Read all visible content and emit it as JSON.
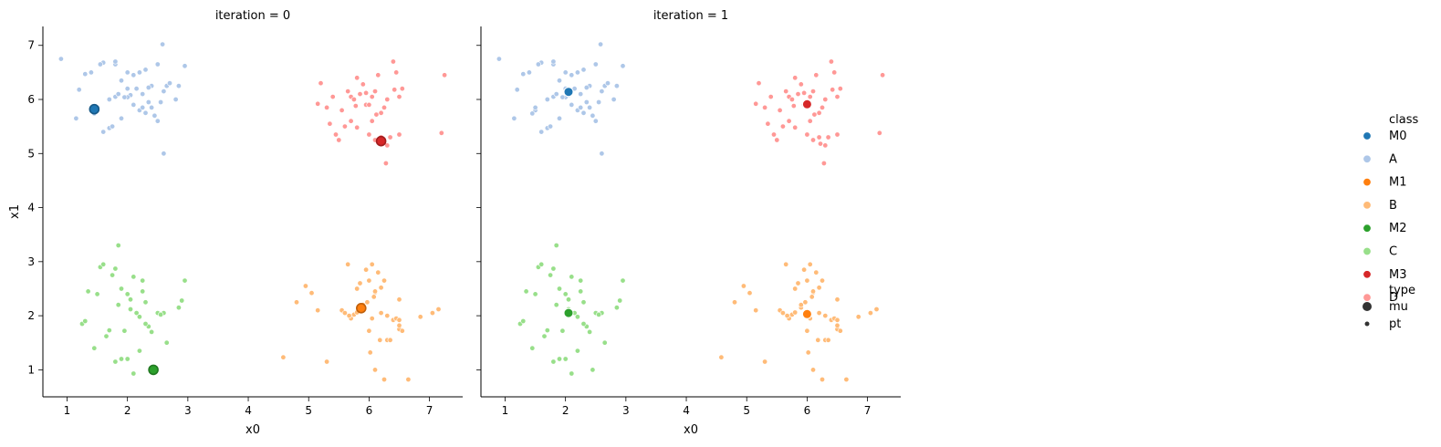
{
  "chart_data": {
    "type": "scatter",
    "xlabel": "x0",
    "ylabel": "x1",
    "xlim": [
      0.6,
      7.55
    ],
    "ylim": [
      0.5,
      7.35
    ],
    "xticks": [
      "1",
      "2",
      "3",
      "4",
      "5",
      "6",
      "7"
    ],
    "yticks": [
      "1",
      "2",
      "3",
      "4",
      "5",
      "6",
      "7"
    ],
    "legend": {
      "placement": "right",
      "class_title": "class",
      "class_entries": [
        {
          "label": "M0",
          "color": "#1f77b4"
        },
        {
          "label": "A",
          "color": "#aec7e8"
        },
        {
          "label": "M1",
          "color": "#ff7f0e"
        },
        {
          "label": "B",
          "color": "#ffbb78"
        },
        {
          "label": "M2",
          "color": "#2ca02c"
        },
        {
          "label": "C",
          "color": "#98df8a"
        },
        {
          "label": "M3",
          "color": "#d62728"
        },
        {
          "label": "D",
          "color": "#ff9896"
        }
      ],
      "type_title": "type",
      "type_entries": [
        {
          "label": "mu",
          "size": "large"
        },
        {
          "label": "pt",
          "size": "small"
        }
      ]
    },
    "points": {
      "A": {
        "color": "#aec7e8",
        "x": [
          0.9,
          1.2,
          1.3,
          1.4,
          1.5,
          1.5,
          1.6,
          1.6,
          1.7,
          1.7,
          1.8,
          1.8,
          1.8,
          1.85,
          1.9,
          1.9,
          2.0,
          2.0,
          2.05,
          2.1,
          2.1,
          2.15,
          2.2,
          2.2,
          2.25,
          2.3,
          2.3,
          2.35,
          2.4,
          2.4,
          2.45,
          2.5,
          2.5,
          2.55,
          2.6,
          2.6,
          2.65,
          2.7,
          2.8,
          2.85,
          2.95,
          1.15,
          1.45,
          1.55,
          1.75,
          2.0,
          2.25,
          1.95,
          2.35,
          2.58
        ],
        "y": [
          6.75,
          6.18,
          6.47,
          6.5,
          5.8,
          5.85,
          5.4,
          6.68,
          5.47,
          6.0,
          6.05,
          6.65,
          6.7,
          6.1,
          5.65,
          6.35,
          6.5,
          6.2,
          6.08,
          5.9,
          6.45,
          6.2,
          5.8,
          6.5,
          6.1,
          5.75,
          6.55,
          5.95,
          5.85,
          6.25,
          5.7,
          6.65,
          5.6,
          5.95,
          6.15,
          5.0,
          6.25,
          6.3,
          6.0,
          6.25,
          6.62,
          5.65,
          5.74,
          6.65,
          5.5,
          6.04,
          5.85,
          6.04,
          6.22,
          7.02
        ]
      },
      "B": {
        "color": "#ffbb78",
        "x": [
          4.58,
          4.8,
          4.95,
          5.05,
          5.15,
          5.3,
          5.55,
          5.6,
          5.65,
          5.7,
          5.75,
          5.8,
          5.85,
          5.9,
          5.95,
          6.0,
          6.0,
          6.05,
          6.05,
          6.1,
          6.1,
          6.15,
          6.2,
          6.2,
          6.25,
          6.25,
          6.3,
          6.35,
          6.4,
          6.45,
          6.5,
          6.5,
          6.5,
          6.55,
          6.65,
          6.85,
          7.05,
          7.15,
          5.8,
          6.02,
          6.18,
          6.5,
          5.9,
          6.1,
          5.67,
          6.08,
          6.3,
          5.97
        ],
        "y": [
          1.23,
          2.25,
          2.55,
          2.42,
          2.1,
          1.15,
          2.1,
          2.05,
          2.95,
          1.95,
          2.02,
          2.5,
          2.6,
          2.15,
          2.85,
          2.65,
          1.72,
          1.95,
          2.95,
          2.43,
          1.0,
          2.8,
          2.52,
          2.05,
          2.65,
          0.82,
          1.55,
          1.55,
          1.92,
          1.95,
          2.3,
          1.92,
          1.75,
          1.72,
          0.82,
          1.98,
          2.05,
          2.12,
          2.06,
          1.32,
          1.55,
          1.82,
          2.2,
          2.45,
          2.0,
          2.35,
          2.0,
          2.25
        ]
      },
      "C": {
        "color": "#98df8a",
        "x": [
          1.25,
          1.3,
          1.35,
          1.45,
          1.5,
          1.55,
          1.6,
          1.7,
          1.75,
          1.8,
          1.8,
          1.85,
          1.9,
          1.9,
          1.95,
          2.0,
          2.0,
          2.05,
          2.1,
          2.1,
          2.15,
          2.2,
          2.2,
          2.25,
          2.3,
          2.35,
          2.4,
          2.45,
          2.5,
          2.6,
          2.65,
          2.85,
          2.9,
          2.95,
          1.85,
          2.05,
          2.25,
          1.65,
          2.3,
          2.55
        ],
        "y": [
          1.85,
          1.9,
          2.45,
          1.4,
          2.4,
          2.9,
          2.95,
          1.73,
          2.75,
          1.15,
          2.87,
          3.3,
          1.2,
          2.5,
          1.72,
          2.4,
          1.2,
          2.12,
          0.93,
          2.72,
          2.05,
          1.35,
          1.98,
          2.65,
          2.25,
          1.8,
          1.7,
          1.0,
          2.05,
          2.05,
          1.5,
          2.15,
          2.28,
          2.65,
          2.2,
          2.3,
          2.45,
          1.62,
          1.85,
          2.02
        ]
      },
      "D": {
        "color": "#ff9896",
        "x": [
          5.15,
          5.2,
          5.3,
          5.35,
          5.4,
          5.45,
          5.5,
          5.55,
          5.6,
          5.65,
          5.7,
          5.7,
          5.75,
          5.8,
          5.8,
          5.85,
          5.9,
          5.95,
          6.0,
          6.0,
          6.05,
          6.1,
          6.1,
          6.15,
          6.2,
          6.2,
          6.25,
          6.3,
          6.3,
          6.35,
          6.4,
          6.45,
          6.5,
          6.5,
          6.55,
          7.2,
          7.25,
          5.78,
          6.12,
          6.22,
          5.95,
          6.42,
          6.05,
          6.28
        ],
        "y": [
          5.92,
          6.3,
          5.85,
          5.55,
          6.05,
          5.35,
          5.25,
          5.8,
          5.5,
          6.15,
          5.6,
          6.05,
          6.0,
          6.4,
          5.48,
          6.1,
          6.28,
          5.9,
          5.9,
          5.35,
          5.6,
          6.15,
          5.25,
          6.45,
          5.75,
          5.3,
          5.85,
          6.0,
          5.15,
          5.3,
          6.7,
          6.5,
          6.05,
          5.35,
          6.2,
          5.38,
          6.45,
          5.88,
          5.72,
          5.18,
          6.12,
          6.18,
          6.05,
          4.82
        ]
      }
    },
    "facets": [
      {
        "title": "iteration = 0",
        "mu": [
          {
            "class": "M0",
            "color": "#1f77b4",
            "x": 1.45,
            "y": 5.82
          },
          {
            "class": "M1",
            "color": "#ff7f0e",
            "x": 5.87,
            "y": 2.14
          },
          {
            "class": "M2",
            "color": "#2ca02c",
            "x": 2.43,
            "y": 1.0
          },
          {
            "class": "M3",
            "color": "#d62728",
            "x": 6.2,
            "y": 5.23
          }
        ]
      },
      {
        "title": "iteration = 1",
        "mu": [
          {
            "class": "M0",
            "color": "#1f77b4",
            "x": 2.05,
            "y": 6.14
          },
          {
            "class": "M1",
            "color": "#ff7f0e",
            "x": 6.0,
            "y": 2.03
          },
          {
            "class": "M2",
            "color": "#2ca02c",
            "x": 2.05,
            "y": 2.05
          },
          {
            "class": "M3",
            "color": "#d62728",
            "x": 6.0,
            "y": 5.91
          }
        ]
      }
    ]
  }
}
